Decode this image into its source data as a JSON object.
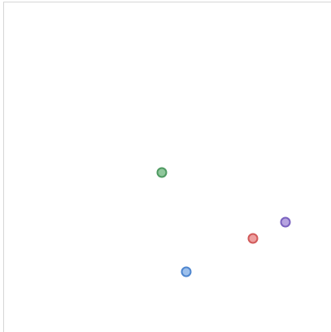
{
  "canvas": {
    "background": "#ffffff",
    "border_color": "#d6d6d6"
  },
  "markers": [
    {
      "name": "green-dot-marker",
      "fill": "#8fc79b",
      "stroke": "#4f9a62"
    },
    {
      "name": "purple-dot-marker",
      "fill": "#b6a3e0",
      "stroke": "#7a62bf"
    },
    {
      "name": "red-dot-marker",
      "fill": "#ee9f9f",
      "stroke": "#d15a5a"
    },
    {
      "name": "blue-dot-marker",
      "fill": "#9dc0ec",
      "stroke": "#4f86cf"
    }
  ]
}
